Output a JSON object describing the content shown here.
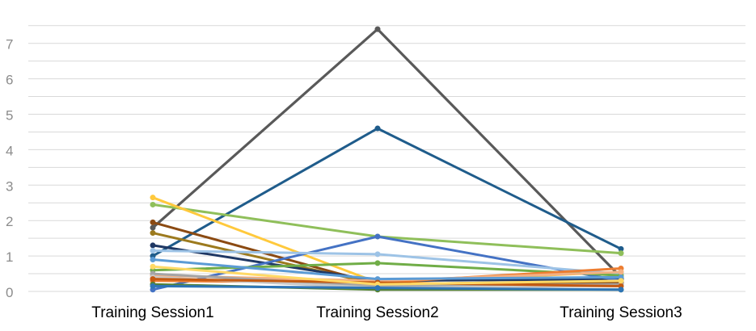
{
  "chart_data": {
    "type": "line",
    "categories": [
      "Training Session1",
      "Training Session2",
      "Training Session3"
    ],
    "ylim": [
      0,
      7.5
    ],
    "yticks": [
      "0",
      "1",
      "2",
      "3",
      "4",
      "5",
      "6",
      "7"
    ],
    "grid": true,
    "series": [
      {
        "color": "#595959",
        "values": [
          1.8,
          7.4,
          0.4
        ]
      },
      {
        "color": "#1f5c8b",
        "values": [
          1.0,
          4.6,
          1.2
        ]
      },
      {
        "color": "#8fbf5a",
        "values": [
          2.45,
          1.55,
          1.08
        ]
      },
      {
        "color": "#ffc93c",
        "values": [
          2.65,
          0.25,
          0.55
        ]
      },
      {
        "color": "#8b4a12",
        "values": [
          1.95,
          0.2,
          0.25
        ]
      },
      {
        "color": "#9c7a1e",
        "values": [
          1.65,
          0.2,
          0.3
        ]
      },
      {
        "color": "#1f3864",
        "values": [
          1.3,
          0.3,
          0.35
        ]
      },
      {
        "color": "#4472c4",
        "values": [
          0.05,
          1.55,
          0.3
        ]
      },
      {
        "color": "#9dc3e6",
        "values": [
          1.15,
          1.05,
          0.5
        ]
      },
      {
        "color": "#70ad47",
        "values": [
          0.6,
          0.8,
          0.45
        ]
      },
      {
        "color": "#ed7d31",
        "values": [
          0.3,
          0.25,
          0.65
        ]
      },
      {
        "color": "#f4b183",
        "values": [
          0.45,
          0.3,
          0.55
        ]
      },
      {
        "color": "#a5a5a5",
        "values": [
          0.5,
          0.15,
          0.2
        ]
      },
      {
        "color": "#5b9bd5",
        "values": [
          0.9,
          0.35,
          0.4
        ]
      },
      {
        "color": "#c9c9c9",
        "values": [
          0.4,
          0.1,
          0.15
        ]
      },
      {
        "color": "#548235",
        "values": [
          0.2,
          0.05,
          0.05
        ]
      },
      {
        "color": "#c55a11",
        "values": [
          0.35,
          0.25,
          0.15
        ]
      },
      {
        "color": "#ffd966",
        "values": [
          0.7,
          0.2,
          0.3
        ]
      },
      {
        "color": "#2e75b6",
        "values": [
          0.15,
          0.1,
          0.05
        ]
      }
    ]
  }
}
